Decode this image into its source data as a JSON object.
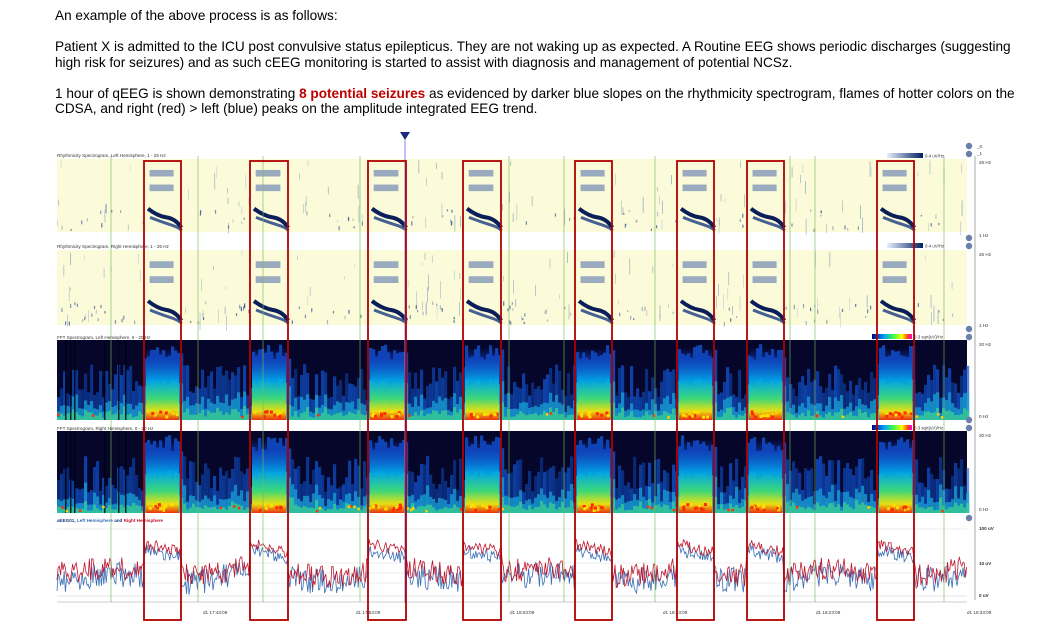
{
  "intro": "An example of the above process is as follows:",
  "case": "Patient X is admitted to the ICU post convulsive status epilepticus.  They are not waking up as expected. A Routine EEG shows periodic discharges (suggesting high risk for seizures) and as such cEEG monitoring is started to assist with diagnosis and management of potential NCSz.",
  "summary": {
    "before": "1 hour of qEEG is shown demonstrating ",
    "highlight": "8 potential seizures",
    "after": " as evidenced by darker blue slopes on the rhythmicity spectrogram, flames of hotter colors on the CDSA, and right (red) > left (blue) peaks on the amplitude integrated EEG trend."
  },
  "panels": {
    "rhythm_left": {
      "title": "Rhythmicity Spectrogram, Left Hemisphere, 1 - 25 Hz",
      "scale": "0-4 uV/Hz",
      "top_label": "25 Hz",
      "bottom_label": "1 Hz"
    },
    "rhythm_right": {
      "title": "Rhythmicity Spectrogram, Right Hemisphere, 1 - 25 Hz",
      "scale": "0-4 uV/Hz",
      "top_label": "25 Hz",
      "bottom_label": "1 Hz"
    },
    "fft_left": {
      "title": "FFT Spectrogram, Left Hemisphere, 0 - 20 Hz",
      "scale": "0-3 sqrt(uV)/Hz",
      "top_label": "20 Hz",
      "bottom_label": "0 Hz"
    },
    "fft_right": {
      "title": "FFT Spectrogram, Right Hemisphere, 0 - 20 Hz",
      "scale": "0-3 sqrt(uV)/Hz",
      "top_label": "20 Hz",
      "bottom_label": "0 Hz"
    },
    "aeeg": {
      "title_prefix": "aEEG01, ",
      "title_left": "Left Hemisphere",
      "title_mid": " and ",
      "title_right": "Right Hemisphere",
      "labels": [
        "100 uV",
        "10 uV",
        "0 uV"
      ]
    }
  },
  "time_labels": [
    "d1 17:43:09",
    "d1 17:53:09",
    "d1 18:03:09",
    "d1 18:13:09",
    "d1 18:23:09",
    "d1 18:33:09"
  ],
  "corner_labels": [
    "_0",
    "_1"
  ],
  "seizure_count": 8,
  "colors": {
    "highlight": "#c00000",
    "seizure_box": "#b00000",
    "left_trace": "#3a6fb5",
    "right_trace": "#c0182e",
    "rhythm_bg": "#fbfbd9"
  }
}
